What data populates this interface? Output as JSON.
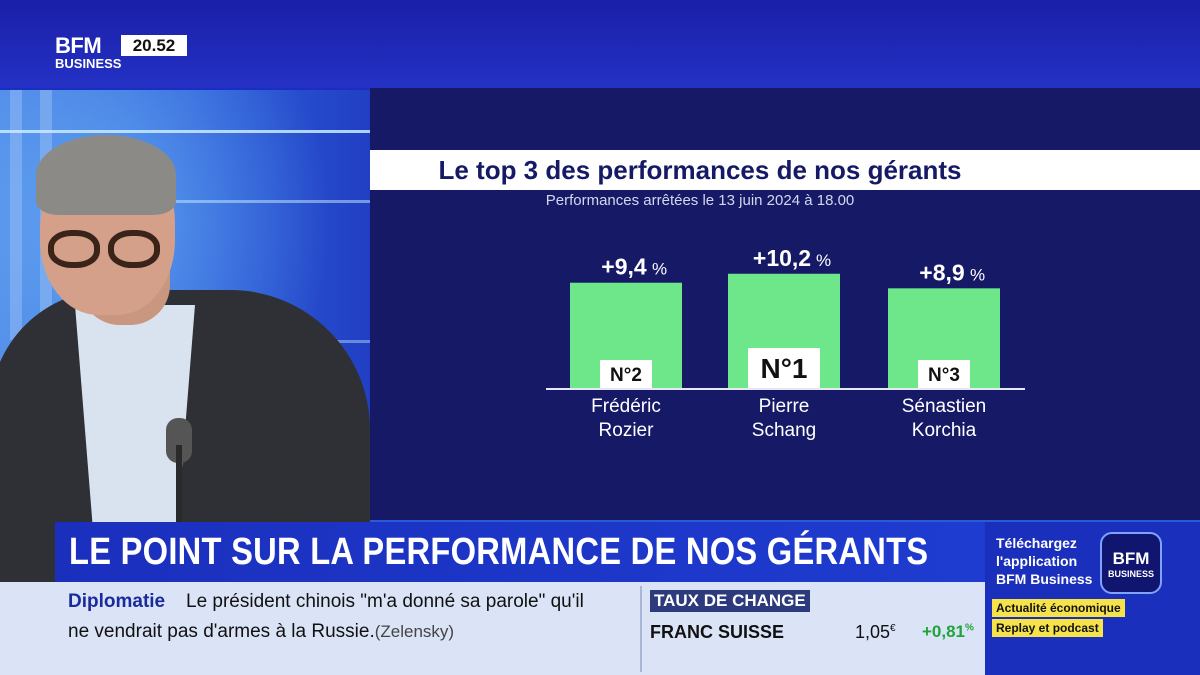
{
  "channel": {
    "logo": "BFM",
    "logo_sub": "BUSINESS",
    "clock": "20.52"
  },
  "chart_data": {
    "type": "bar",
    "title": "Le top 3 des performances de nos gérants",
    "subtitle": "Performances arrêtées le 13 juin 2024 à 18.00",
    "bars": [
      {
        "rank": "N°2",
        "name_line1": "Frédéric",
        "name_line2": "Rozier",
        "value": 9.4,
        "label": "+9,4",
        "unit": "%"
      },
      {
        "rank": "N°1",
        "name_line1": "Pierre",
        "name_line2": "Schang",
        "value": 10.2,
        "label": "+10,2",
        "unit": "%"
      },
      {
        "rank": "N°3",
        "name_line1": "Sénastien",
        "name_line2": "Korchia",
        "value": 8.9,
        "label": "+8,9",
        "unit": "%"
      }
    ],
    "bar_color": "#6ee68a"
  },
  "headline": "LE POINT SUR LA PERFORMANCE DE NOS GÉRANTS",
  "promo": {
    "text_l1": "Téléchargez",
    "text_l2": "l'application",
    "text_l3": "BFM Business",
    "logo_l1": "BFM",
    "logo_l2": "BUSINESS",
    "tag1": "Actualité économique",
    "tag2": "Replay et podcast"
  },
  "ticker": {
    "label": "Diplomatie",
    "line1": "Le président chinois \"m'a donné sa parole\" qu'il",
    "line2": "ne vendrait pas d'armes à la Russie.",
    "source": "(Zelensky)"
  },
  "fx": {
    "label": "TAUX DE CHANGE",
    "name": "FRANC SUISSE",
    "value": "1,05",
    "value_unit": "€",
    "change": "+0,81",
    "change_unit": "%"
  },
  "colors": {
    "brand_blue": "#1b2fbd",
    "panel": "#161a66",
    "accent_yellow": "#f6e24b",
    "positive": "#1fa33a"
  }
}
